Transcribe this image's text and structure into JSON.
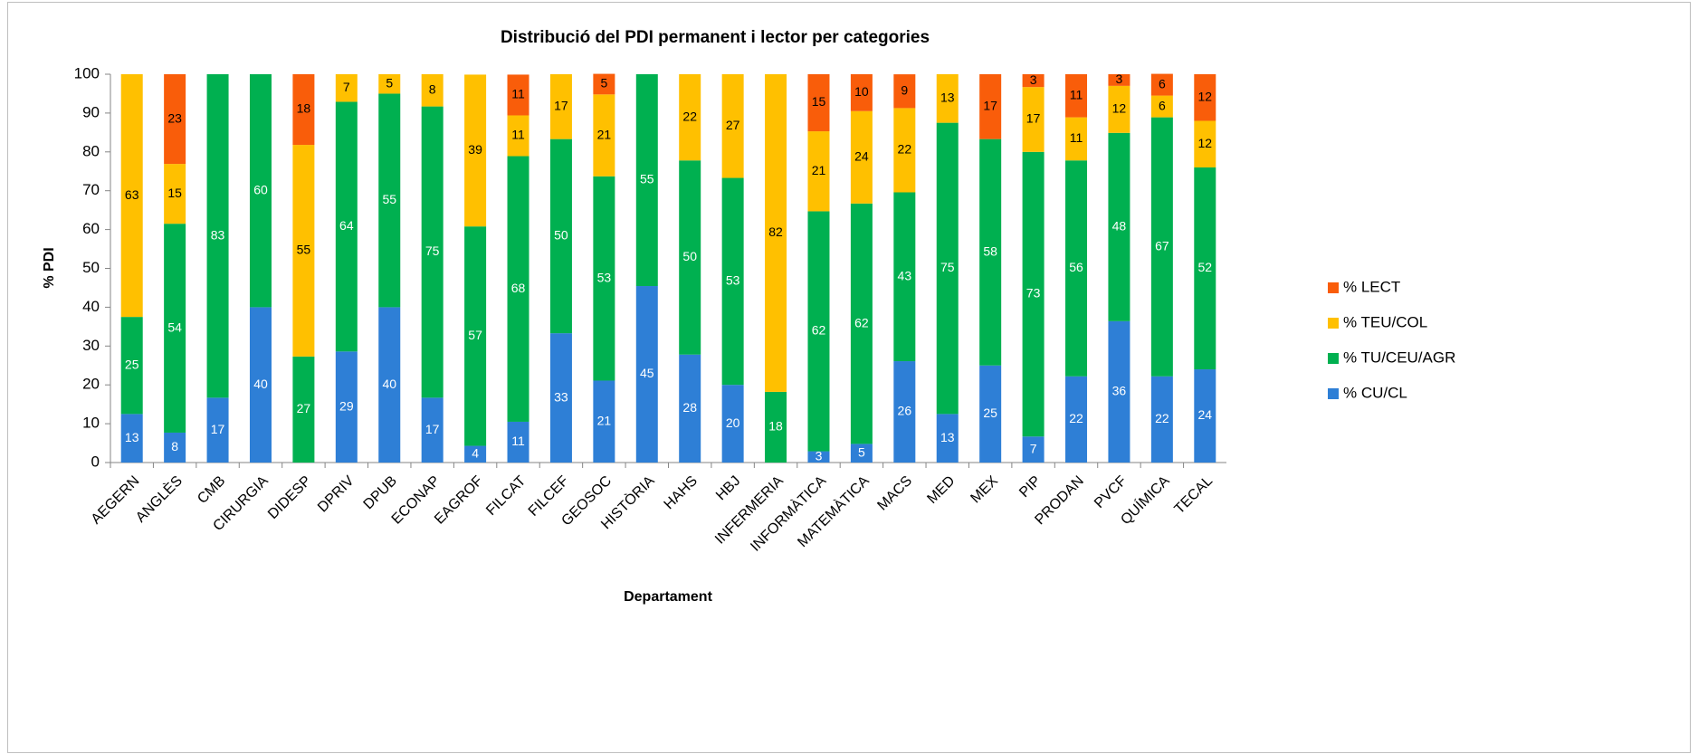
{
  "chart_data": {
    "type": "stacked_bar",
    "title": "Distribució del PDI permanent i lector per categories",
    "y_label": "% PDI",
    "x_label": "Departament",
    "categories": [
      "AEGERN",
      "ANGLÈS",
      "CMB",
      "CIRURGIA",
      "DIDESP",
      "DPRIV",
      "DPUB",
      "ECONAP",
      "EAGROF",
      "FILCAT",
      "FILCEF",
      "GEOSOC",
      "HISTÒRIA",
      "HAHS",
      "HBJ",
      "INFERMERIA",
      "INFORMÀTICA",
      "MATEMÀTICA",
      "MACS",
      "MED",
      "MEX",
      "PIP",
      "PRODAN",
      "PVCF",
      "QUÍMICA",
      "TECAL"
    ],
    "series": [
      {
        "name": "% CU/CL",
        "color": "#2e7fd6",
        "text_color": "#ffffff",
        "values": [
          12.5,
          7.7,
          16.7,
          40,
          0,
          28.6,
          40,
          16.7,
          4.3,
          10.5,
          33.3,
          21.1,
          45.45,
          27.8,
          20,
          0,
          2.9,
          4.8,
          26.1,
          12.5,
          25,
          6.7,
          22.2,
          36.4,
          22.2,
          24
        ],
        "value_labels": [
          "13",
          "8",
          "17",
          "40",
          null,
          "29",
          "40",
          "17",
          "4",
          "11",
          "33",
          "21",
          "45",
          "28",
          "20",
          null,
          "3",
          "5",
          "26",
          "13",
          "25",
          "7",
          "22",
          "36",
          "22",
          "24"
        ]
      },
      {
        "name": "% TU/CEU/AGR",
        "color": "#00b050",
        "text_color": "#ffffff",
        "values": [
          25,
          53.8,
          83.3,
          60,
          27.3,
          64.3,
          55,
          75,
          56.5,
          68.4,
          50,
          52.6,
          54.55,
          50,
          53.3,
          18.2,
          61.8,
          61.9,
          43.48,
          75,
          58.3,
          73.3,
          55.6,
          48.5,
          66.7,
          52
        ],
        "value_labels": [
          "25",
          "54",
          "83",
          "60",
          "27",
          "64",
          "55",
          "75",
          "57",
          "68",
          "50",
          "53",
          "55",
          "50",
          "53",
          "18",
          "62",
          "62",
          "43",
          "75",
          "58",
          "73",
          "56",
          "48",
          "67",
          "52"
        ]
      },
      {
        "name": "% TEU/COL",
        "color": "#ffc000",
        "text_color": "#000000",
        "values": [
          62.5,
          15.4,
          0,
          0,
          54.5,
          7.1,
          5,
          8.3,
          39.1,
          10.5,
          16.7,
          21.1,
          0,
          22.2,
          26.7,
          81.8,
          20.6,
          23.8,
          21.7,
          12.5,
          0,
          16.7,
          11.1,
          12.1,
          5.6,
          12
        ],
        "value_labels": [
          "63",
          "15",
          null,
          null,
          "55",
          "7",
          "5",
          "8",
          "39",
          "11",
          "17",
          "21",
          null,
          "22",
          "27",
          "82",
          "21",
          "24",
          "22",
          "13",
          null,
          "17",
          "11",
          "12",
          "6",
          "12"
        ]
      },
      {
        "name": "% LECT",
        "color": "#f95d0a",
        "text_color": "#000000",
        "values": [
          0,
          23.1,
          0,
          0,
          18.2,
          0,
          0,
          0,
          0,
          10.5,
          0,
          5.3,
          0,
          0,
          0,
          0,
          14.7,
          9.5,
          8.7,
          0,
          16.7,
          3.3,
          11.1,
          3,
          5.6,
          12
        ],
        "value_labels": [
          null,
          "23",
          null,
          null,
          "18",
          null,
          null,
          null,
          null,
          "11",
          null,
          "5",
          null,
          null,
          null,
          null,
          "15",
          "10",
          "9",
          null,
          "17",
          "3",
          "11",
          "3",
          "6",
          "12"
        ]
      }
    ],
    "ylim": [
      0,
      100
    ],
    "yticks": [
      0,
      10,
      20,
      30,
      40,
      50,
      60,
      70,
      80,
      90,
      100
    ],
    "grid": false,
    "legend": "right"
  }
}
